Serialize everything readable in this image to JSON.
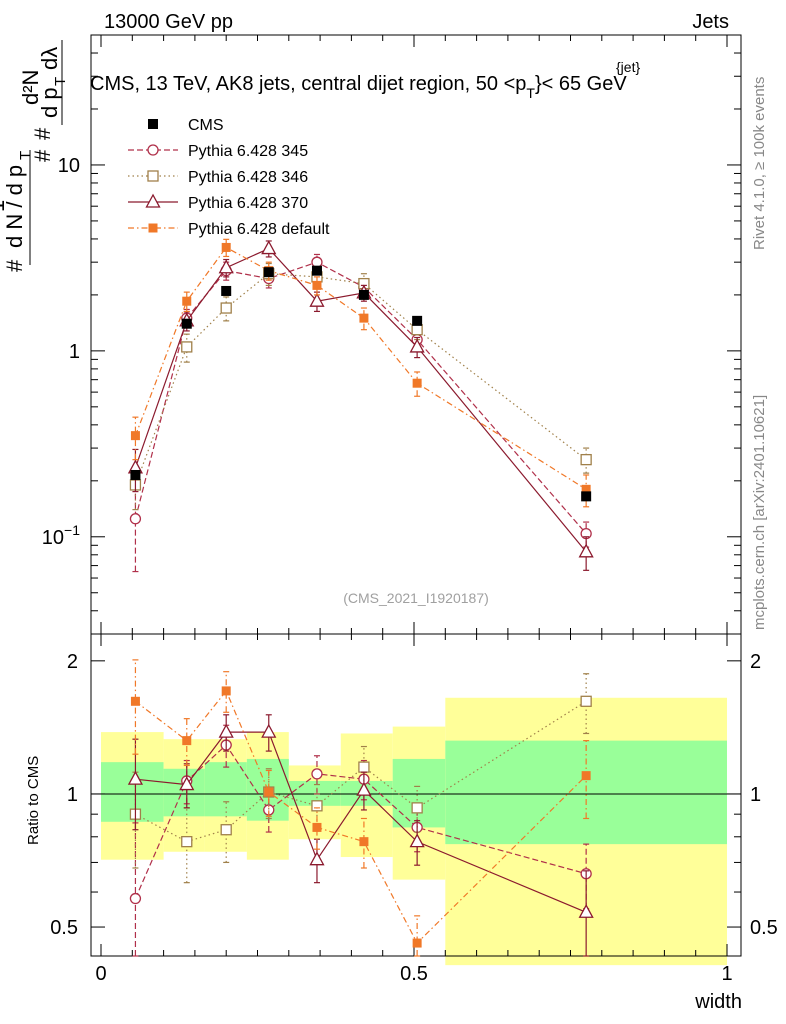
{
  "header": {
    "left": "13000 GeV pp",
    "right": "Jets"
  },
  "side_text": {
    "rivet": "Rivet 4.1.0, ≥ 100k events",
    "mcplots": "mcplots.cern.ch [arXiv:2401.10621]"
  },
  "chart_data": {
    "type": "line",
    "title_parts": {
      "main": "CMS, 13 TeV, AK8 jets, central dijet region, 50 <p",
      "sub": "T",
      "sup": "{jet}",
      "tail": "}< 65 GeV"
    },
    "analysis_tag": "(CMS_2021_I1920187)",
    "xlabel": "width",
    "ylabel_top": {
      "frac_num": "1",
      "frac_den": "d N / d p",
      "frac_den_sub": "T",
      "hash1": "#",
      "hash2": "#",
      "hash3": "#",
      "deriv_num": "d²N",
      "deriv_den_a": "d p",
      "deriv_den_sub": "T",
      "deriv_den_b": "dλ"
    },
    "ylabel_ratio": "Ratio to CMS",
    "xlim": [
      0,
      1
    ],
    "ylim_top": [
      0.03,
      50
    ],
    "ylim_ratio": [
      0.43,
      2.3
    ],
    "yscale_top": "log",
    "yscale_ratio": "log",
    "x_ticks": [
      {
        "v": 0,
        "label": "0"
      },
      {
        "v": 0.5,
        "label": "0.5"
      },
      {
        "v": 1,
        "label": "1"
      }
    ],
    "y_ticks_top": [
      {
        "v": 0.1,
        "base": "10",
        "exp": "−1"
      },
      {
        "v": 1,
        "base": "1",
        "exp": ""
      },
      {
        "v": 10,
        "base": "10",
        "exp": ""
      }
    ],
    "y_ticks_ratio": [
      {
        "v": 0.5,
        "label": "0.5"
      },
      {
        "v": 1,
        "label": "1"
      },
      {
        "v": 2,
        "label": "2"
      }
    ],
    "bin_edges": [
      0,
      0.1,
      0.166,
      0.233,
      0.3,
      0.383,
      0.466,
      0.55,
      1.0
    ],
    "x": [
      0.055,
      0.137,
      0.2,
      0.268,
      0.345,
      0.42,
      0.505,
      0.775
    ],
    "cms": {
      "name": "CMS",
      "values": [
        0.215,
        1.4,
        2.1,
        2.65,
        2.7,
        2.0,
        1.45,
        0.165
      ]
    },
    "band_stat": [
      {
        "lo": 0.865,
        "hi": 1.18
      },
      {
        "lo": 0.89,
        "hi": 1.14
      },
      {
        "lo": 0.89,
        "hi": 1.18
      },
      {
        "lo": 0.87,
        "hi": 1.2
      },
      {
        "lo": 0.94,
        "hi": 1.07
      },
      {
        "lo": 0.94,
        "hi": 1.07
      },
      {
        "lo": 0.84,
        "hi": 1.2
      },
      {
        "lo": 0.77,
        "hi": 1.32
      }
    ],
    "band_total": [
      {
        "lo": 0.71,
        "hi": 1.38
      },
      {
        "lo": 0.74,
        "hi": 1.33
      },
      {
        "lo": 0.74,
        "hi": 1.33
      },
      {
        "lo": 0.71,
        "hi": 1.38
      },
      {
        "lo": 0.79,
        "hi": 1.16
      },
      {
        "lo": 0.72,
        "hi": 1.37
      },
      {
        "lo": 0.64,
        "hi": 1.42
      },
      {
        "lo": 0.41,
        "hi": 1.65
      }
    ],
    "series": [
      {
        "name": "Pythia 6.428 345",
        "color": "#b0304a",
        "marker": "circle",
        "dash": "6,3",
        "values": [
          0.125,
          1.5,
          2.7,
          2.45,
          3.0,
          2.2,
          1.15,
          0.104
        ],
        "errors": [
          0.06,
          0.17,
          0.3,
          0.27,
          0.3,
          0.2,
          0.13,
          0.016
        ],
        "ratio": [
          0.58,
          1.07,
          1.29,
          0.92,
          1.11,
          1.08,
          0.84,
          0.66
        ],
        "ratio_err": [
          0.28,
          0.12,
          0.14,
          0.1,
          0.11,
          0.11,
          0.1,
          0.11
        ]
      },
      {
        "name": "Pythia 6.428 346",
        "color": "#a0804a",
        "marker": "square-open",
        "dash": "1.5,3",
        "values": [
          0.19,
          1.05,
          1.7,
          2.6,
          2.5,
          2.3,
          1.3,
          0.26
        ],
        "errors": [
          0.05,
          0.18,
          0.25,
          0.35,
          0.3,
          0.3,
          0.15,
          0.04
        ],
        "ratio": [
          0.9,
          0.78,
          0.83,
          1.01,
          0.94,
          1.15,
          0.93,
          1.62
        ],
        "ratio_err": [
          0.22,
          0.15,
          0.13,
          0.13,
          0.11,
          0.13,
          0.11,
          0.25
        ]
      },
      {
        "name": "Pythia 6.428 370",
        "color": "#8b1a2e",
        "marker": "triangle",
        "dash": "",
        "values": [
          0.235,
          1.45,
          2.8,
          3.55,
          1.85,
          2.05,
          1.05,
          0.083
        ],
        "errors": [
          0.06,
          0.17,
          0.3,
          0.35,
          0.22,
          0.2,
          0.13,
          0.017
        ],
        "ratio": [
          1.08,
          1.05,
          1.38,
          1.38,
          0.71,
          1.02,
          0.78,
          0.54
        ],
        "ratio_err": [
          0.25,
          0.12,
          0.13,
          0.13,
          0.08,
          0.1,
          0.09,
          0.13
        ]
      },
      {
        "name": "Pythia 6.428 default",
        "color": "#f07828",
        "marker": "square-filled",
        "dash": "6,3,1.5,3",
        "values": [
          0.35,
          1.85,
          3.6,
          2.7,
          2.25,
          1.5,
          0.67,
          0.18
        ],
        "errors": [
          0.09,
          0.22,
          0.38,
          0.3,
          0.25,
          0.2,
          0.1,
          0.035
        ],
        "ratio": [
          1.62,
          1.32,
          1.71,
          1.01,
          0.84,
          0.78,
          0.46,
          1.1
        ],
        "ratio_err": [
          0.39,
          0.16,
          0.18,
          0.12,
          0.09,
          0.1,
          0.07,
          0.22
        ]
      }
    ]
  }
}
